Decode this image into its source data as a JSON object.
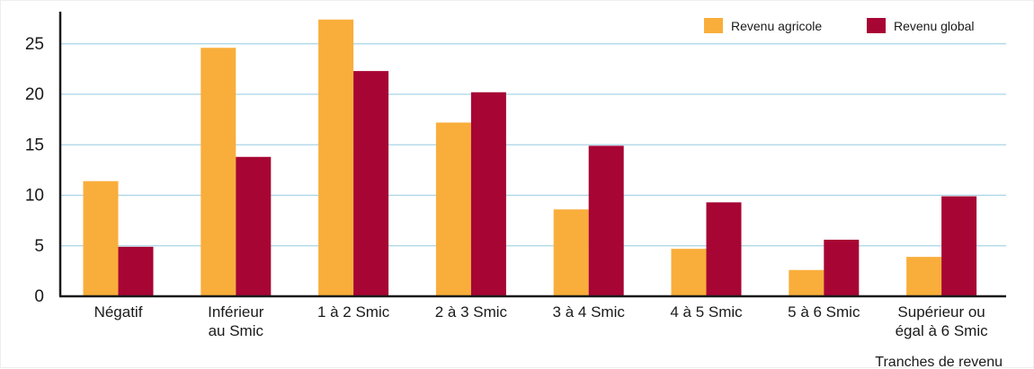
{
  "chart_data": {
    "type": "bar",
    "title": "",
    "xlabel": "Tranches de revenu",
    "ylabel": "",
    "ylim": [
      0,
      28
    ],
    "yticks": [
      0,
      5,
      10,
      15,
      20,
      25
    ],
    "grid": true,
    "legend_position": "top-right",
    "categories": [
      [
        "Négatif"
      ],
      [
        "Inférieur",
        "au Smic"
      ],
      [
        "1 à 2 Smic"
      ],
      [
        "2 à 3 Smic"
      ],
      [
        "3 à 4 Smic"
      ],
      [
        "4 à 5 Smic"
      ],
      [
        "5 à 6 Smic"
      ],
      [
        "Supérieur ou",
        "égal à 6 Smic"
      ]
    ],
    "series": [
      {
        "name": "Revenu agricole",
        "color": "#F9AE3B",
        "values": [
          11.4,
          24.6,
          27.4,
          17.2,
          8.6,
          4.7,
          2.6,
          3.9
        ]
      },
      {
        "name": "Revenu global",
        "color": "#A70534",
        "values": [
          4.9,
          13.8,
          22.3,
          20.2,
          14.9,
          9.3,
          5.6,
          9.9
        ]
      }
    ],
    "colors": {
      "grid": "#A9D4E6",
      "axis": "#1a1a1a"
    }
  }
}
